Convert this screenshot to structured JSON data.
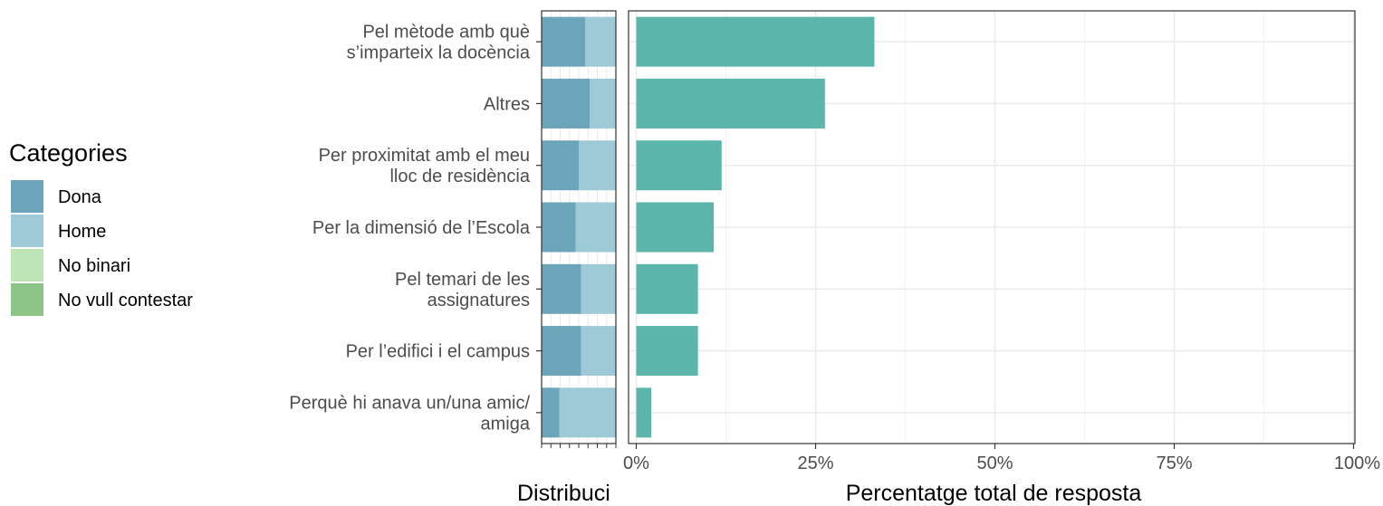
{
  "chart_data": {
    "type": "bar",
    "orientation": "horizontal",
    "categories": [
      [
        "Pel mètode amb què",
        "s’imparteix la docència"
      ],
      [
        "Altres"
      ],
      [
        "Per proximitat amb el meu",
        "lloc de residència"
      ],
      [
        "Per la dimensió de l’Escola"
      ],
      [
        "Pel temari de les",
        "assignatures"
      ],
      [
        "Per l’edifici i el campus"
      ],
      [
        "Perquè hi anava un/una amic/",
        "amiga"
      ]
    ],
    "distribution": {
      "xlabel": "Distribuci",
      "series": [
        {
          "name": "Dona",
          "values": [
            0.59,
            0.65,
            0.5,
            0.46,
            0.53,
            0.53,
            0.24
          ]
        },
        {
          "name": "Home",
          "values": [
            0.41,
            0.35,
            0.5,
            0.54,
            0.47,
            0.47,
            0.76
          ]
        },
        {
          "name": "No binari",
          "values": [
            0,
            0,
            0,
            0,
            0,
            0,
            0
          ]
        },
        {
          "name": "No vull contestar",
          "values": [
            0,
            0,
            0,
            0,
            0,
            0,
            0
          ]
        }
      ]
    },
    "total": {
      "values": [
        33.2,
        26.3,
        11.9,
        10.8,
        8.6,
        8.6,
        2.1
      ],
      "xlabel": "Percentatge total de resposta",
      "xlim": [
        0,
        100
      ],
      "xticks": [
        "0%",
        "25%",
        "50%",
        "75%",
        "100%"
      ],
      "xtick_values": [
        0,
        25,
        50,
        75,
        100
      ]
    },
    "legend": {
      "title": "Categories",
      "position": "left",
      "items": [
        "Dona",
        "Home",
        "No binari",
        "No vull contestar"
      ]
    },
    "colors": {
      "Dona": "#6ca5ba",
      "Home": "#9ecad8",
      "No binari": "#bde5b5",
      "No vull contestar": "#8cc587",
      "total": "#5bb5aa",
      "grid": "#ebebeb",
      "panel_border": "#333333"
    },
    "grid": true
  }
}
